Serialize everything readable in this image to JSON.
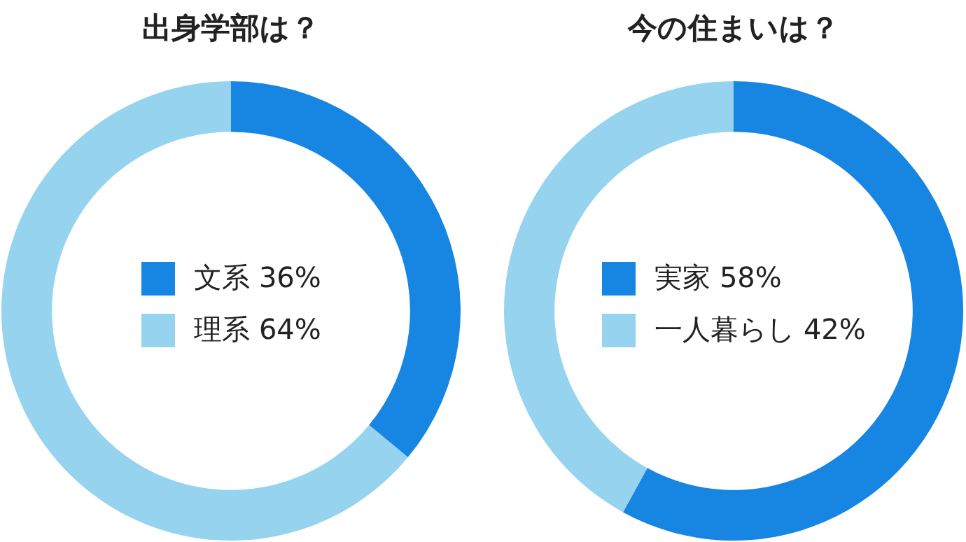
{
  "chart_data": [
    {
      "type": "donut",
      "title": "出身学部は？",
      "categories": [
        "文系",
        "理系"
      ],
      "values": [
        36,
        64
      ],
      "value_labels": [
        "36%",
        "64%"
      ],
      "colors": [
        "#1785e2",
        "#96d3ef"
      ],
      "legend": "center"
    },
    {
      "type": "donut",
      "title": "今の住まいは？",
      "categories": [
        "実家",
        "一人暮らし"
      ],
      "values": [
        58,
        42
      ],
      "value_labels": [
        "58%",
        "42%"
      ],
      "colors": [
        "#1785e2",
        "#96d3ef"
      ],
      "legend": "center"
    }
  ]
}
